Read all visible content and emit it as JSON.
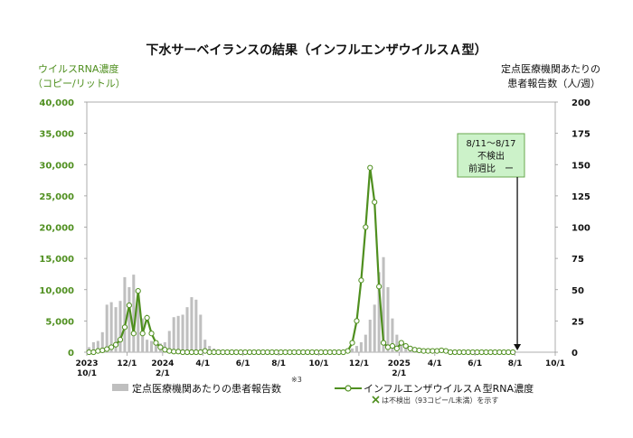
{
  "chart_data": {
    "type": "bar+line",
    "title": "下水サーベイランスの結果（インフルエンザウイルスＡ型）",
    "left_axis": {
      "label_line1": "ウイルスRNA濃度",
      "label_line2": "（コピー/リットル）",
      "ylim": [
        0,
        40000
      ],
      "ticks": [
        "0",
        "5,000",
        "10,000",
        "15,000",
        "20,000",
        "25,000",
        "30,000",
        "35,000",
        "40,000"
      ],
      "color": "#4f8f1f"
    },
    "right_axis": {
      "label_line1": "定点医療機関あたりの",
      "label_line2": "患者報告数（人/週）",
      "ylim": [
        0,
        200
      ],
      "ticks": [
        "0",
        "25",
        "50",
        "75",
        "100",
        "125",
        "150",
        "175",
        "200"
      ]
    },
    "x_axis": {
      "total_weeks": 105,
      "ticks": [
        {
          "week": 0,
          "line1": "2023",
          "line2": "10/1"
        },
        {
          "week": 9,
          "line1": "12/1",
          "line2": ""
        },
        {
          "week": 17,
          "line1": "2024",
          "line2": "2/1"
        },
        {
          "week": 26,
          "line1": "4/1",
          "line2": ""
        },
        {
          "week": 35,
          "line1": "6/1",
          "line2": ""
        },
        {
          "week": 43,
          "line1": "8/1",
          "line2": ""
        },
        {
          "week": 52,
          "line1": "10/1",
          "line2": ""
        },
        {
          "week": 61,
          "line1": "12/1",
          "line2": ""
        },
        {
          "week": 70,
          "line1": "2025",
          "line2": "2/1"
        },
        {
          "week": 78,
          "line1": "4/1",
          "line2": ""
        },
        {
          "week": 87,
          "line1": "6/1",
          "line2": ""
        },
        {
          "week": 96,
          "line1": "8/1",
          "line2": ""
        },
        {
          "week": 105,
          "line1": "10/1",
          "line2": ""
        }
      ]
    },
    "bar_series": {
      "name": "定点医療機関あたりの患者報告数",
      "footnote": "※3",
      "color": "#bfbfbf",
      "week_start": 0,
      "values": [
        4,
        8,
        9,
        16,
        38,
        40,
        36,
        41,
        60,
        52,
        62,
        42,
        27,
        10,
        9,
        8,
        7,
        8,
        17,
        28,
        29,
        30,
        36,
        44,
        42,
        30,
        10,
        5,
        3,
        2,
        1,
        1,
        1,
        1,
        1,
        1,
        0.5,
        0.5,
        0.5,
        0.5,
        0.5,
        0.5,
        0.5,
        0.5,
        0.5,
        0.5,
        0.5,
        0.5,
        0.5,
        0.5,
        0.5,
        0.5,
        0.5,
        0.5,
        0.5,
        0.5,
        0.5,
        1,
        2,
        3,
        5,
        8,
        14,
        26,
        38,
        64,
        76,
        52,
        27,
        14,
        8,
        5,
        3,
        2,
        1.5,
        1,
        1,
        0.5,
        0.5,
        0.5,
        0.5,
        0.5,
        0.5,
        0.5,
        0.5,
        0.5,
        0.5,
        0.5,
        0.5,
        0.5,
        0.5,
        0.5,
        0.5,
        0.5,
        0.5,
        0.5,
        0.5
      ]
    },
    "line_series": {
      "name": "インフルエンザウイルスＡ型RNA濃度",
      "color": "#4f8f1f",
      "week_start": 0,
      "values": [
        0,
        0,
        200,
        300,
        500,
        800,
        1200,
        2000,
        4000,
        7500,
        3000,
        9800,
        3000,
        5500,
        3000,
        1500,
        800,
        400,
        200,
        100,
        100,
        0,
        0,
        0,
        0,
        0,
        200,
        0,
        0,
        0,
        0,
        0,
        0,
        0,
        0,
        0,
        0,
        0,
        0,
        0,
        0,
        0,
        0,
        0,
        0,
        0,
        0,
        0,
        0,
        0,
        0,
        0,
        0,
        0,
        0,
        0,
        0,
        0,
        200,
        1500,
        5000,
        11500,
        20000,
        29500,
        24000,
        10500,
        1500,
        800,
        1000,
        600,
        1500,
        1000,
        600,
        400,
        300,
        200,
        200,
        200,
        200,
        300,
        200,
        0,
        0,
        0,
        0,
        0,
        0,
        0,
        0,
        0,
        0,
        0,
        0,
        0,
        0,
        0
      ],
      "not_detected_weeks": [
        96
      ]
    },
    "legend_note": "は不検出（93コピー/L未満）を示す",
    "annotation": {
      "week": 96,
      "line1": "8/11～8/17",
      "line2": "不検出",
      "line3": "前週比　ー"
    }
  }
}
